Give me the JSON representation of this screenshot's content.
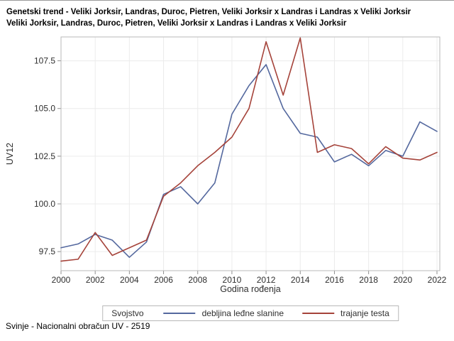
{
  "page": {
    "title_line1": "Genetski trend - Veliki Jorksir, Landras, Duroc, Pietren, Veliki Jorksir x Landras i Landras x Veliki Jorksir",
    "title_line2": "Veliki Jorksir, Landras, Duroc, Pietren, Veliki Jorksir x Landras i Landras x Veliki Jorksir",
    "footer": "Svinje - Nacionalni obračun UV - 2519"
  },
  "chart_data": {
    "type": "line",
    "title": "Genetski trend - Veliki Jorksir, Landras, Duroc, Pietren, Veliki Jorksir x Landras i Landras x Veliki Jorksir",
    "xlabel": "Godina rođenja",
    "ylabel": "UV12",
    "legend_title": "Svojstvo",
    "legend_position": "bottom",
    "grid": true,
    "xlim": [
      2000,
      2022
    ],
    "ylim": [
      96.5,
      108.75
    ],
    "xticks": [
      2000,
      2002,
      2004,
      2006,
      2008,
      2010,
      2012,
      2014,
      2016,
      2018,
      2020,
      2022
    ],
    "yticks": [
      97.5,
      100.0,
      102.5,
      105.0,
      107.5
    ],
    "x": [
      2000,
      2001,
      2002,
      2003,
      2004,
      2005,
      2006,
      2007,
      2008,
      2009,
      2010,
      2011,
      2012,
      2013,
      2014,
      2015,
      2016,
      2017,
      2018,
      2019,
      2020,
      2021,
      2022
    ],
    "series": [
      {
        "name": "debljina leđne slanine",
        "color": "#54689e",
        "values": [
          97.7,
          97.9,
          98.4,
          98.1,
          97.2,
          98.0,
          100.5,
          100.9,
          100.0,
          101.1,
          104.7,
          106.2,
          107.3,
          105.0,
          103.7,
          103.5,
          102.2,
          102.6,
          102.0,
          102.8,
          102.5,
          104.3,
          103.8
        ]
      },
      {
        "name": "trajanje testa",
        "color": "#a5433a",
        "values": [
          97.0,
          97.1,
          98.5,
          97.3,
          97.7,
          98.1,
          100.4,
          101.1,
          102.0,
          102.7,
          103.5,
          105.0,
          108.5,
          105.7,
          108.7,
          102.7,
          103.1,
          102.9,
          102.1,
          103.0,
          102.4,
          102.3,
          102.7
        ]
      }
    ],
    "colors": {
      "grid": "#ececec",
      "frame": "#b9b9b9",
      "tick": "#8f8f8f",
      "text": "#2f2f2f"
    }
  }
}
